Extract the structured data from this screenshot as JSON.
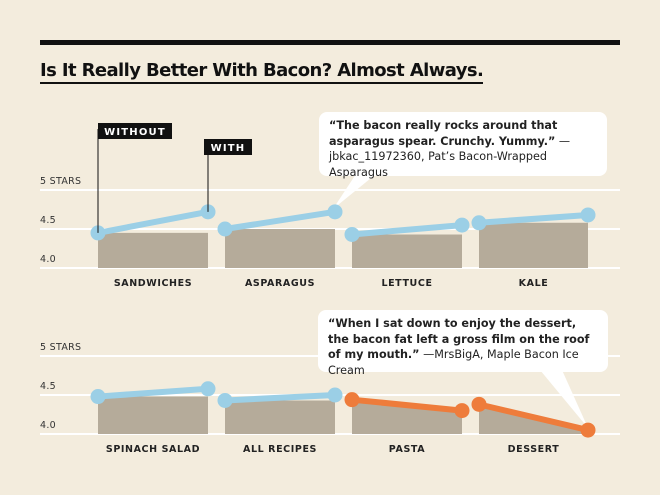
{
  "title": "Is It Really Better With Bacon? Almost Always.",
  "colors": {
    "with_bacon_better": "#9bcfe6",
    "with_bacon_worse": "#ee7c3b",
    "baseline_area": "#b5ab9a",
    "background": "#f3ecdd"
  },
  "chart_data": {
    "type": "slope",
    "ylim": [
      4.0,
      5.0
    ],
    "y_ticks": [
      {
        "value": 5.0,
        "label": "5 STARS"
      },
      {
        "value": 4.5,
        "label": "4.5"
      },
      {
        "value": 4.0,
        "label": "4.0"
      }
    ],
    "legend": {
      "without": "WITHOUT",
      "with": "WITH"
    },
    "panels": [
      {
        "categories": [
          "SANDWICHES",
          "ASPARAGUS",
          "LETTUCE",
          "KALE"
        ],
        "without": [
          4.45,
          4.5,
          4.43,
          4.58
        ],
        "with": [
          4.72,
          4.72,
          4.55,
          4.68
        ]
      },
      {
        "categories": [
          "SPINACH SALAD",
          "ALL RECIPES",
          "PASTA",
          "DESSERT"
        ],
        "without": [
          4.48,
          4.43,
          4.44,
          4.38
        ],
        "with": [
          4.58,
          4.5,
          4.3,
          4.05
        ]
      }
    ]
  },
  "quotes": [
    {
      "bold": "“The bacon really rocks around that asparagus spear. Crunchy. Yummy.”",
      "attribution": " —jbkac_11972360, Pat’s Bacon-Wrapped Asparagus"
    },
    {
      "bold": "“When I sat down to enjoy the dessert, the bacon fat left a gross film on the roof of my mouth.”",
      "attribution": " —MrsBigA, Maple Bacon Ice Cream"
    }
  ]
}
